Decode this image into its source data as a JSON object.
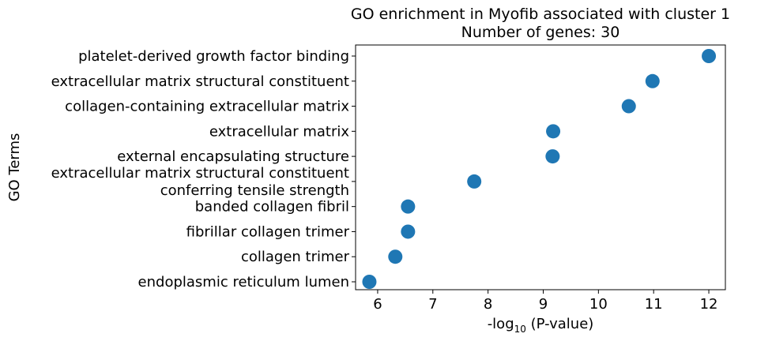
{
  "chart_data": {
    "type": "scatter",
    "title_lines": [
      "GO enrichment in Myofib associated with cluster 1",
      "Number of genes: 30"
    ],
    "xlabel_prefix": "-log",
    "xlabel_sub": "10",
    "xlabel_suffix": " (P-value)",
    "ylabel": "GO Terms",
    "xlim": [
      5.6,
      12.3
    ],
    "xticks": [
      6,
      7,
      8,
      9,
      10,
      11,
      12
    ],
    "grid": false,
    "marker_color": "#1f77b4",
    "terms": [
      {
        "label": [
          "platelet-derived growth factor binding"
        ],
        "value": 12.0
      },
      {
        "label": [
          "extracellular matrix structural constituent"
        ],
        "value": 10.98
      },
      {
        "label": [
          "collagen-containing extracellular matrix"
        ],
        "value": 10.55
      },
      {
        "label": [
          "extracellular matrix"
        ],
        "value": 9.18
      },
      {
        "label": [
          "external encapsulating structure"
        ],
        "value": 9.17
      },
      {
        "label": [
          "extracellular matrix structural constituent",
          "conferring tensile strength"
        ],
        "value": 7.75
      },
      {
        "label": [
          "banded collagen fibril"
        ],
        "value": 6.55
      },
      {
        "label": [
          "fibrillar collagen trimer"
        ],
        "value": 6.55
      },
      {
        "label": [
          "collagen trimer"
        ],
        "value": 6.32
      },
      {
        "label": [
          "endoplasmic reticulum lumen"
        ],
        "value": 5.85
      }
    ]
  }
}
